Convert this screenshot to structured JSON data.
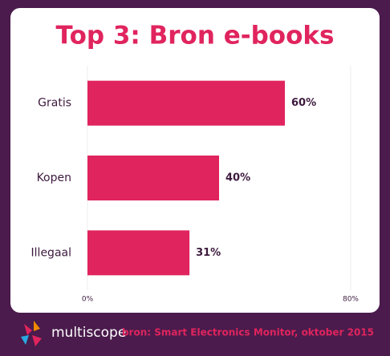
{
  "chart_data": {
    "type": "hbar",
    "title": "Top 3: Bron e-books",
    "categories": [
      "Gratis",
      "Kopen",
      "Illegaal"
    ],
    "values": [
      60,
      40,
      31
    ],
    "value_labels": [
      "60%",
      "40%",
      "31%"
    ],
    "color": "#e0245e",
    "xlim": [
      0,
      80
    ],
    "xticks": [
      {
        "value": 0,
        "label": "0%"
      },
      {
        "value": 80,
        "label": "80%"
      }
    ],
    "grid": true
  },
  "footer": {
    "brand": "multiscope",
    "source": "bron: Smart Electronics Monitor, oktober 2015"
  }
}
